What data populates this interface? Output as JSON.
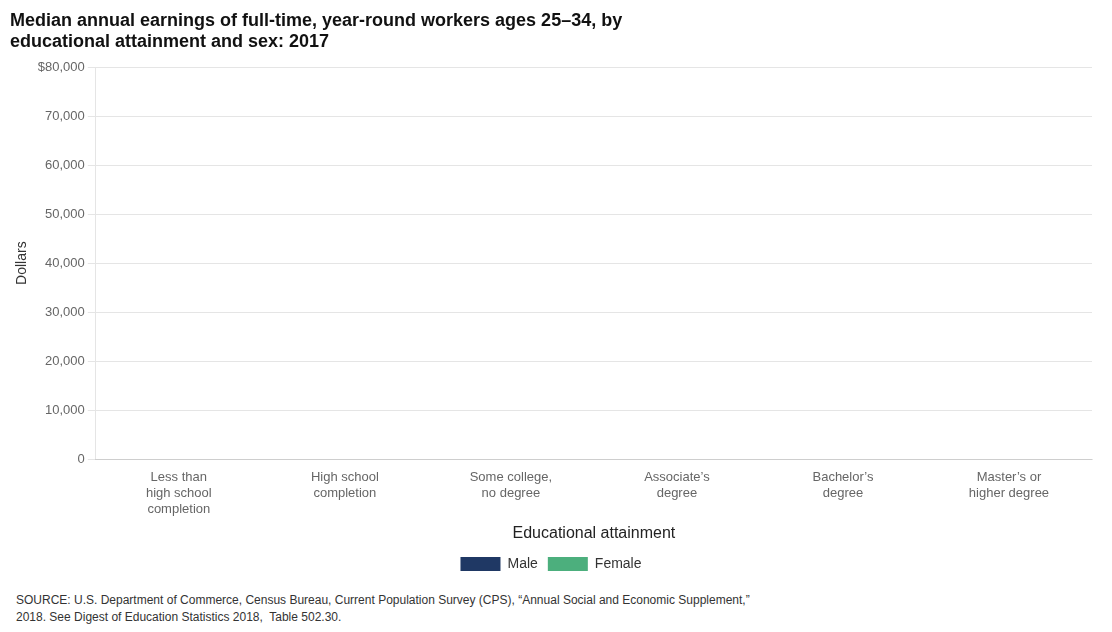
{
  "chart_data": {
    "type": "bar",
    "title": [
      "Median annual earnings of full-time, year-round workers ages 25–34, by",
      "educational attainment and sex: 2017"
    ],
    "x_label": "Educational attainment",
    "y_label": "Dollars",
    "categories": [
      "Less than\nhigh school\ncompletion",
      "High school\ncompletion",
      "Some college,\nno degree",
      "Associate’s\ndegree",
      "Bachelor’s\ndegree",
      "Master’s or\nhigher degree"
    ],
    "series": [
      {
        "name": "Male",
        "color": "#1f3864",
        "values": [
          0,
          0,
          0,
          0,
          0,
          0
        ]
      },
      {
        "name": "Female",
        "color": "#4caf7d",
        "values": [
          0,
          0,
          0,
          0,
          0,
          0
        ]
      }
    ],
    "ylim": [
      0,
      80000
    ],
    "yticks": [
      0,
      {
        "value": 10000,
        "label": "10,000"
      },
      {
        "value": 20000,
        "label": "20,000"
      },
      {
        "value": 30000,
        "label": "30,000"
      },
      {
        "value": 40000,
        "label": "40,000"
      },
      {
        "value": 50000,
        "label": "50,000"
      },
      {
        "value": 60000,
        "label": "60,000"
      },
      {
        "value": 70000,
        "label": "70,000"
      },
      {
        "value": 80000,
        "label": "$80,000"
      }
    ],
    "grid": true,
    "legend": "bottom",
    "source": [
      "SOURCE: U.S. Department of Commerce, Census Bureau, Current Population Survey (CPS), “Annual Social and Economic Supplement,”",
      "2018. See Digest of Education Statistics 2018,  Table 502.30."
    ]
  }
}
